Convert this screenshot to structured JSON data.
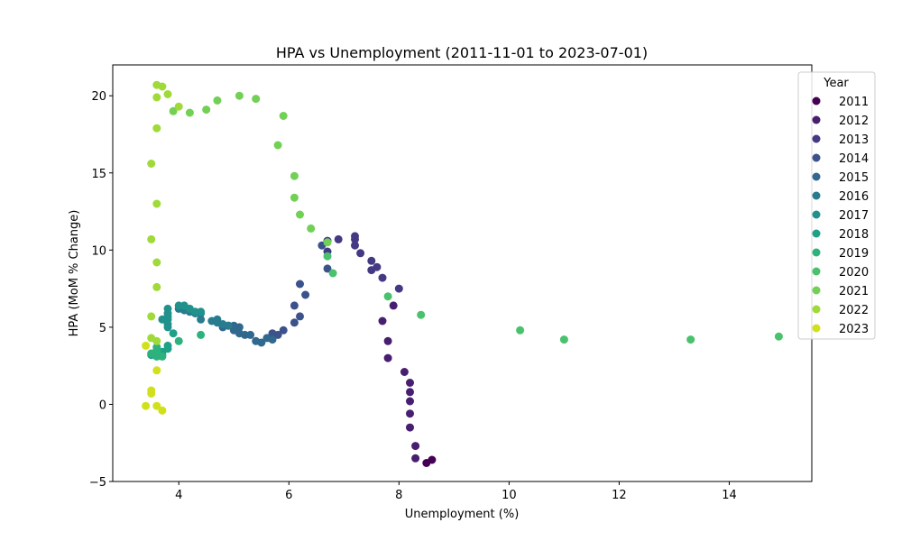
{
  "chart_data": {
    "type": "scatter",
    "title": "HPA vs Unemployment (2011-11-01 to 2023-07-01)",
    "xlabel": "Unemployment (%)",
    "ylabel": "HPA (MoM % Change)",
    "xlim": [
      2.8,
      15.5
    ],
    "ylim": [
      -5,
      22
    ],
    "xticks": [
      4,
      6,
      8,
      10,
      12,
      14
    ],
    "yticks": [
      -5,
      0,
      5,
      10,
      15,
      20
    ],
    "grid": false,
    "legend": {
      "title": "Year",
      "placement": "top-right"
    },
    "series": [
      {
        "name": "2011",
        "color": "#440154",
        "points": [
          [
            8.6,
            -3.6
          ],
          [
            8.5,
            -3.8
          ]
        ]
      },
      {
        "name": "2012",
        "color": "#481f70",
        "points": [
          [
            8.3,
            -3.5
          ],
          [
            8.3,
            -2.7
          ],
          [
            8.2,
            -1.5
          ],
          [
            8.2,
            -0.6
          ],
          [
            8.2,
            0.2
          ],
          [
            8.2,
            0.8
          ],
          [
            8.2,
            1.4
          ],
          [
            8.1,
            2.1
          ],
          [
            7.8,
            3.0
          ],
          [
            7.8,
            4.1
          ],
          [
            7.7,
            5.4
          ],
          [
            7.9,
            6.4
          ]
        ]
      },
      {
        "name": "2013",
        "color": "#443983",
        "points": [
          [
            8.0,
            7.5
          ],
          [
            7.7,
            8.2
          ],
          [
            7.5,
            8.7
          ],
          [
            7.6,
            8.9
          ],
          [
            7.5,
            9.3
          ],
          [
            7.3,
            9.8
          ],
          [
            7.2,
            10.3
          ],
          [
            7.2,
            10.9
          ],
          [
            7.2,
            10.7
          ],
          [
            6.9,
            10.7
          ],
          [
            6.7,
            10.6
          ],
          [
            6.7,
            9.9
          ]
        ]
      },
      {
        "name": "2014",
        "color": "#3b528b",
        "points": [
          [
            6.6,
            10.3
          ],
          [
            6.7,
            8.8
          ],
          [
            6.3,
            7.1
          ],
          [
            6.2,
            7.8
          ],
          [
            6.1,
            6.4
          ],
          [
            6.2,
            5.7
          ],
          [
            6.1,
            5.3
          ],
          [
            5.9,
            4.8
          ],
          [
            5.8,
            4.5
          ],
          [
            5.7,
            4.6
          ]
        ]
      },
      {
        "name": "2015",
        "color": "#31688e",
        "points": [
          [
            5.7,
            4.2
          ],
          [
            5.6,
            4.3
          ],
          [
            5.5,
            4.0
          ],
          [
            5.4,
            4.1
          ],
          [
            5.3,
            4.5
          ],
          [
            5.2,
            4.5
          ],
          [
            5.1,
            4.6
          ],
          [
            5.0,
            4.8
          ],
          [
            5.1,
            5.0
          ],
          [
            5.0,
            5.1
          ],
          [
            4.9,
            5.1
          ],
          [
            4.8,
            5.0
          ]
        ]
      },
      {
        "name": "2016",
        "color": "#287c8e",
        "points": [
          [
            4.9,
            5.1
          ],
          [
            4.8,
            5.2
          ],
          [
            4.7,
            5.3
          ],
          [
            4.7,
            5.5
          ],
          [
            4.6,
            5.4
          ],
          [
            4.4,
            5.5
          ],
          [
            4.4,
            5.9
          ],
          [
            4.3,
            5.9
          ],
          [
            4.2,
            6.0
          ],
          [
            4.1,
            6.1
          ],
          [
            4.0,
            6.2
          ],
          [
            4.1,
            6.3
          ]
        ]
      },
      {
        "name": "2017",
        "color": "#21918c",
        "points": [
          [
            4.0,
            6.4
          ],
          [
            4.1,
            6.4
          ],
          [
            4.2,
            6.2
          ],
          [
            4.3,
            6.0
          ],
          [
            4.4,
            6.0
          ],
          [
            3.8,
            6.2
          ],
          [
            3.8,
            5.9
          ],
          [
            3.8,
            5.7
          ],
          [
            3.7,
            5.5
          ],
          [
            3.8,
            5.5
          ],
          [
            3.8,
            5.2
          ],
          [
            3.8,
            5.0
          ]
        ]
      },
      {
        "name": "2018",
        "color": "#1fa187",
        "points": [
          [
            3.9,
            4.6
          ],
          [
            3.8,
            3.8
          ],
          [
            3.8,
            3.6
          ],
          [
            3.7,
            3.4
          ],
          [
            3.6,
            3.3
          ],
          [
            3.7,
            3.2
          ],
          [
            3.6,
            3.3
          ],
          [
            3.5,
            3.2
          ]
        ]
      },
      {
        "name": "2019",
        "color": "#2db27d",
        "points": [
          [
            3.6,
            3.3
          ],
          [
            3.6,
            3.5
          ],
          [
            3.6,
            3.7
          ],
          [
            3.5,
            3.3
          ],
          [
            3.6,
            3.1
          ],
          [
            3.7,
            3.1
          ],
          [
            4.0,
            4.1
          ],
          [
            4.4,
            4.5
          ]
        ]
      },
      {
        "name": "2020",
        "color": "#4ac16d",
        "points": [
          [
            14.9,
            4.4
          ],
          [
            13.3,
            4.2
          ],
          [
            11.0,
            4.2
          ],
          [
            10.2,
            4.8
          ],
          [
            8.4,
            5.8
          ],
          [
            7.8,
            7.0
          ],
          [
            6.8,
            8.5
          ],
          [
            6.7,
            9.6
          ]
        ]
      },
      {
        "name": "2021",
        "color": "#73d056",
        "points": [
          [
            6.7,
            10.5
          ],
          [
            6.4,
            11.4
          ],
          [
            6.2,
            12.3
          ],
          [
            6.1,
            13.4
          ],
          [
            6.1,
            14.8
          ],
          [
            5.8,
            16.8
          ],
          [
            5.9,
            18.7
          ],
          [
            5.4,
            19.8
          ],
          [
            5.1,
            20.0
          ],
          [
            4.7,
            19.7
          ],
          [
            4.5,
            19.1
          ],
          [
            4.2,
            18.9
          ],
          [
            3.9,
            19.0
          ]
        ]
      },
      {
        "name": "2022",
        "color": "#a0da39",
        "points": [
          [
            4.0,
            19.3
          ],
          [
            3.8,
            20.1
          ],
          [
            3.7,
            20.6
          ],
          [
            3.6,
            20.7
          ],
          [
            3.6,
            19.9
          ],
          [
            3.6,
            17.9
          ],
          [
            3.5,
            15.6
          ],
          [
            3.6,
            13.0
          ],
          [
            3.5,
            10.7
          ],
          [
            3.6,
            9.2
          ],
          [
            3.6,
            7.6
          ],
          [
            3.5,
            5.7
          ],
          [
            3.5,
            4.3
          ],
          [
            3.6,
            4.1
          ]
        ]
      },
      {
        "name": "2023",
        "color": "#d0e11c",
        "points": [
          [
            3.4,
            3.8
          ],
          [
            3.6,
            2.2
          ],
          [
            3.5,
            0.9
          ],
          [
            3.5,
            0.7
          ],
          [
            3.4,
            -0.1
          ],
          [
            3.6,
            -0.1
          ],
          [
            3.7,
            -0.4
          ]
        ]
      }
    ]
  }
}
